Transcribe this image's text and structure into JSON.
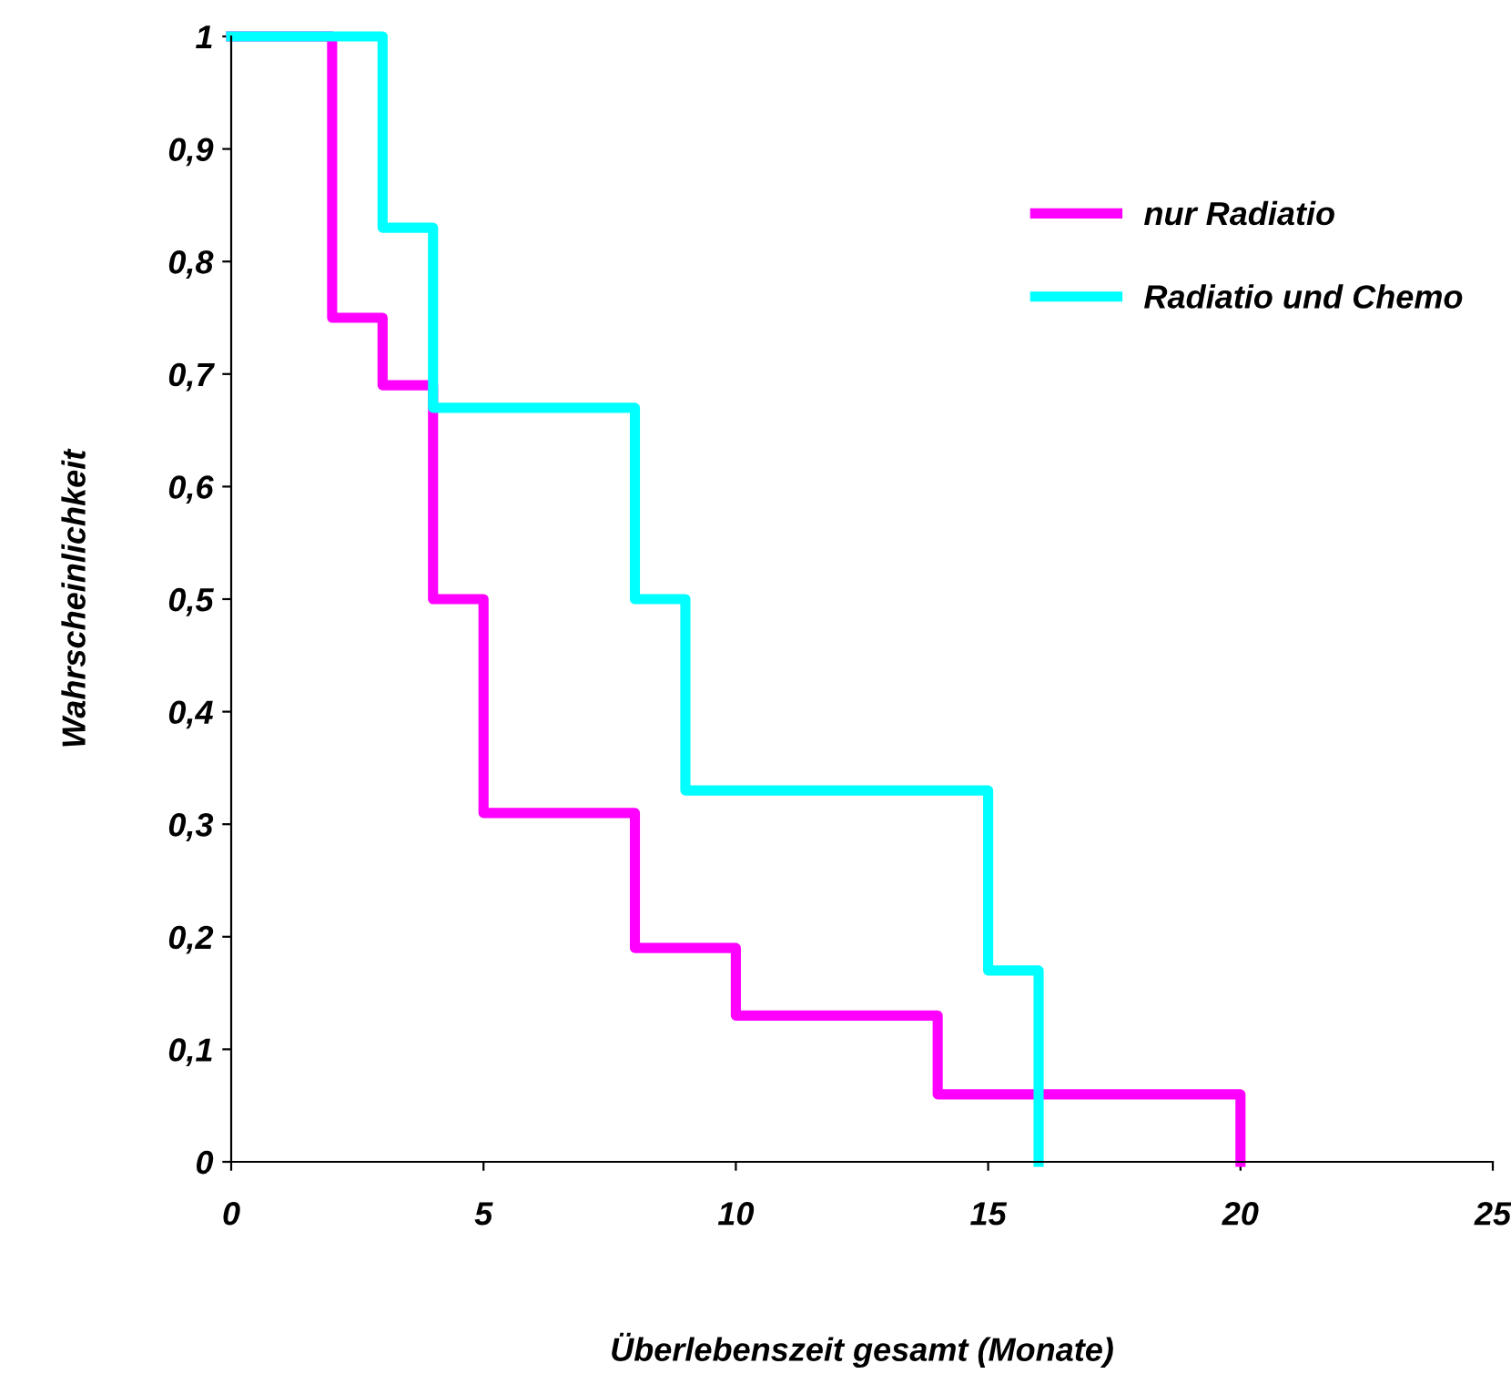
{
  "chart_data": {
    "type": "step",
    "xlabel": "Überlebenszeit gesamt (Monate)",
    "ylabel": "Wahrscheinlichkeit",
    "series": [
      {
        "name": "nur Radiatio",
        "color": "#ff00ff",
        "x": [
          0,
          2,
          3,
          4,
          5,
          8,
          10,
          14,
          20
        ],
        "values": [
          1,
          0.75,
          0.69,
          0.5,
          0.31,
          0.19,
          0.13,
          0.06,
          0
        ]
      },
      {
        "name": "Radiatio und Chemo",
        "color": "#00ffff",
        "x": [
          0,
          3,
          4,
          8,
          9,
          15,
          16
        ],
        "values": [
          1,
          0.83,
          0.67,
          0.5,
          0.33,
          0.17,
          0
        ]
      }
    ],
    "xlim": [
      0,
      25
    ],
    "xticks": [
      0,
      5,
      10,
      15,
      20,
      25
    ],
    "ylim": [
      0,
      1
    ],
    "yticks": [
      0,
      {
        "value": 0.1,
        "label": "0,1"
      },
      {
        "value": 0.2,
        "label": "0,2"
      },
      {
        "value": 0.3,
        "label": "0,3"
      },
      {
        "value": 0.4,
        "label": "0,4"
      },
      {
        "value": 0.5,
        "label": "0,5"
      },
      {
        "value": 0.6,
        "label": "0,6"
      },
      {
        "value": 0.7,
        "label": "0,7"
      },
      {
        "value": 0.8,
        "label": "0,8"
      },
      {
        "value": 0.9,
        "label": "0,9"
      },
      1
    ],
    "grid": false,
    "legend": "top right",
    "line_style": "solid"
  }
}
